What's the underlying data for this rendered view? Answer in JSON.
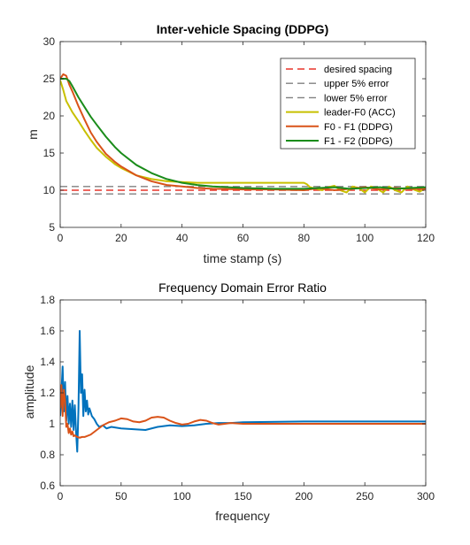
{
  "chart_data": [
    {
      "type": "line",
      "title": "Inter-vehicle Spacing (DDPG)",
      "xlabel": "time stamp (s)",
      "ylabel": "m",
      "xlim": [
        0,
        120
      ],
      "ylim": [
        5,
        30
      ],
      "xticks": [
        0,
        20,
        40,
        60,
        80,
        100,
        120
      ],
      "yticks": [
        5,
        10,
        15,
        20,
        25,
        30
      ],
      "grid": false,
      "legend_placement": "top-right",
      "series": [
        {
          "name": "desired spacing",
          "color": "#e8332a",
          "style": "dashed",
          "x": [
            0,
            120
          ],
          "y": [
            10,
            10
          ]
        },
        {
          "name": "upper 5% error",
          "color": "#808080",
          "style": "dashed",
          "x": [
            0,
            120
          ],
          "y": [
            10.5,
            10.5
          ]
        },
        {
          "name": "lower 5% error",
          "color": "#808080",
          "style": "dashed",
          "x": [
            0,
            120
          ],
          "y": [
            9.5,
            9.5
          ]
        },
        {
          "name": "leader-F0 (ACC)",
          "color": "#c8c000",
          "style": "solid",
          "x": [
            0,
            1,
            2,
            4,
            6,
            8,
            10,
            12,
            15,
            18,
            20,
            25,
            30,
            35,
            40,
            45,
            50,
            55,
            60,
            65,
            70,
            75,
            80,
            81,
            82,
            84,
            86,
            88,
            90,
            92,
            94,
            96,
            98,
            100,
            102,
            104,
            106,
            108,
            110,
            112,
            114,
            116,
            118,
            120
          ],
          "y": [
            24.8,
            23.5,
            22.0,
            20.5,
            19.3,
            18.0,
            16.8,
            15.7,
            14.5,
            13.5,
            13.0,
            12.0,
            11.5,
            11.2,
            11.1,
            11.0,
            11.0,
            11.0,
            11.0,
            11.0,
            11.0,
            11.0,
            11.0,
            10.8,
            10.4,
            10.2,
            10.0,
            10.4,
            10.6,
            10.0,
            9.7,
            10.5,
            10.3,
            9.7,
            10.5,
            10.2,
            9.7,
            10.5,
            10.0,
            9.7,
            10.5,
            10.1,
            9.8,
            10.3
          ]
        },
        {
          "name": "F0 - F1 (DDPG)",
          "color": "#d95319",
          "style": "solid",
          "x": [
            0,
            1,
            2,
            3,
            4,
            6,
            8,
            10,
            12,
            15,
            18,
            20,
            25,
            30,
            35,
            40,
            45,
            50,
            60,
            70,
            80,
            85,
            90,
            95,
            100,
            105,
            110,
            115,
            120
          ],
          "y": [
            25.0,
            25.6,
            25.4,
            24.2,
            23.3,
            21.3,
            19.5,
            17.8,
            16.5,
            14.9,
            13.8,
            13.2,
            12.0,
            11.2,
            10.7,
            10.5,
            10.3,
            10.2,
            10.1,
            10.1,
            10.0,
            10.3,
            10.0,
            10.2,
            10.4,
            10.1,
            10.3,
            10.2,
            10.2
          ]
        },
        {
          "name": "F1 - F2 (DDPG)",
          "color": "#1a8c1a",
          "style": "solid",
          "x": [
            0,
            2,
            3,
            4,
            6,
            8,
            10,
            12,
            15,
            18,
            20,
            25,
            30,
            35,
            40,
            45,
            50,
            55,
            60,
            70,
            80,
            85,
            90,
            95,
            100,
            105,
            110,
            115,
            120
          ],
          "y": [
            25.0,
            25.0,
            24.7,
            24.0,
            22.5,
            21.2,
            19.9,
            18.8,
            17.2,
            15.8,
            15.0,
            13.4,
            12.3,
            11.5,
            11.0,
            10.7,
            10.5,
            10.4,
            10.3,
            10.2,
            10.2,
            10.3,
            10.4,
            10.2,
            10.3,
            10.4,
            10.2,
            10.3,
            10.4
          ]
        }
      ]
    },
    {
      "type": "line",
      "title": "Frequency Domain Error Ratio",
      "xlabel": "frequency",
      "ylabel": "amplitude",
      "xlim": [
        0,
        300
      ],
      "ylim": [
        0.6,
        1.8
      ],
      "xticks": [
        0,
        50,
        100,
        150,
        200,
        250,
        300
      ],
      "yticks": [
        0.6,
        0.8,
        1,
        1.2,
        1.4,
        1.6,
        1.8
      ],
      "grid": false,
      "legend_placement": "none",
      "series": [
        {
          "color": "#0072bd",
          "style": "solid",
          "x": [
            0,
            1,
            2,
            3,
            4,
            5,
            6,
            7,
            8,
            9,
            10,
            11,
            12,
            13,
            14,
            15,
            16,
            17,
            18,
            19,
            20,
            21,
            22,
            23,
            24,
            26,
            28,
            30,
            32,
            35,
            38,
            42,
            46,
            50,
            60,
            70,
            80,
            90,
            100,
            110,
            120,
            130,
            140,
            150,
            200,
            250,
            300
          ],
          "y": [
            1.05,
            1.2,
            1.37,
            1.08,
            1.27,
            1.02,
            1.18,
            1.0,
            1.13,
            0.98,
            1.15,
            0.96,
            1.12,
            0.95,
            0.82,
            1.1,
            1.6,
            1.2,
            1.32,
            1.05,
            1.22,
            1.08,
            1.15,
            1.06,
            1.1,
            1.05,
            1.03,
            1.0,
            0.98,
            0.99,
            0.97,
            0.98,
            0.975,
            0.97,
            0.965,
            0.96,
            0.98,
            0.99,
            0.985,
            0.99,
            1.0,
            1.005,
            1.005,
            1.01,
            1.015,
            1.015,
            1.015
          ]
        },
        {
          "color": "#d95319",
          "style": "solid",
          "x": [
            0,
            1,
            2,
            3,
            4,
            5,
            6,
            7,
            8,
            9,
            10,
            11,
            12,
            14,
            16,
            18,
            20,
            25,
            30,
            35,
            40,
            45,
            50,
            55,
            60,
            65,
            70,
            75,
            80,
            85,
            90,
            95,
            100,
            105,
            110,
            115,
            120,
            125,
            130,
            135,
            140,
            150,
            200,
            250,
            300
          ],
          "y": [
            1.1,
            1.25,
            1.05,
            1.22,
            1.15,
            0.98,
            1.0,
            0.94,
            0.97,
            0.93,
            0.95,
            0.92,
            0.925,
            0.915,
            0.91,
            0.915,
            0.915,
            0.93,
            0.96,
            0.99,
            1.01,
            1.02,
            1.035,
            1.03,
            1.015,
            1.01,
            1.02,
            1.04,
            1.045,
            1.04,
            1.02,
            1.005,
            0.995,
            1.0,
            1.015,
            1.025,
            1.02,
            1.005,
            0.995,
            1.0,
            1.005,
            1.0,
            1.0,
            1.0,
            1.0
          ]
        }
      ]
    }
  ]
}
